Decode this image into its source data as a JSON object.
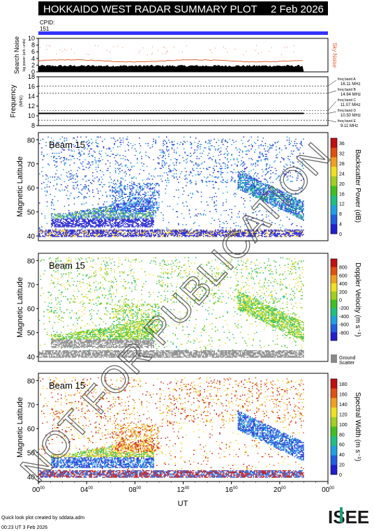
{
  "header": {
    "title": "HOKKAIDO WEST RADAR SUMMARY PLOT",
    "date": "2 Feb 2026",
    "cpid_label": "CPID:",
    "cpid_value": "151"
  },
  "footer": {
    "credit": "Quick look plot created by sddata.adm",
    "timestamp": "00:23 UT  3 Feb 2026",
    "logo_text": "ISEE",
    "watermark": "NOT FOR PUBLICATION"
  },
  "colors": {
    "cpid_bar": "#3333ff",
    "noise_line": "#e06030",
    "ground_scatter": "#888888",
    "text": "#000000"
  },
  "chart_data": [
    {
      "type": "area",
      "name": "noise-panel",
      "ylabel": "Search Noise",
      "ylabel_sub": "log power (arb. units)",
      "right_label": "Sky Noise",
      "yticks": [
        0,
        2,
        4,
        6,
        8,
        10
      ],
      "ylim": [
        0,
        10
      ],
      "x_range_hours": [
        0,
        22
      ],
      "search_noise_level": 1.5,
      "sky_noise_level": 3.2
    },
    {
      "type": "line",
      "name": "frequency-panel",
      "ylabel": "Frequency",
      "ylabel_sub": "(MHz)",
      "yticks": [
        8,
        10,
        12,
        14,
        16,
        18
      ],
      "ylim": [
        8,
        18
      ],
      "bands": [
        {
          "label": "freq band A",
          "value": "16.11 MHz",
          "mhz": 16.11
        },
        {
          "label": "freq band B",
          "value": "14.64 MHz",
          "mhz": 14.64
        },
        {
          "label": "freq band C",
          "value": "11.07 MHz",
          "mhz": 11.07
        },
        {
          "label": "freq band D",
          "value": "10.50 MHz",
          "mhz": 10.5
        },
        {
          "label": "freq band E",
          "value": "9.11 MHz",
          "mhz": 9.11
        }
      ],
      "active_frequency_mhz": 10.5
    },
    {
      "type": "heatmap",
      "name": "power-panel",
      "beam": "Beam 15",
      "ylabel": "Magnetic Latitude",
      "ylim": [
        38,
        83
      ],
      "yticks": [
        40,
        50,
        60,
        70,
        80
      ],
      "colorbar_label": "Backscatter Power (dB)",
      "colorbar_ticks": [
        0,
        4,
        8,
        12,
        16,
        20,
        24,
        28,
        32,
        36
      ],
      "colorbar_range": [
        0,
        38
      ],
      "palette": [
        "#2020d0",
        "#2060e0",
        "#20a0e0",
        "#20c080",
        "#40c020",
        "#a0d020",
        "#f0e020",
        "#f0a020",
        "#e05010",
        "#c01010"
      ],
      "features": [
        {
          "t0": 0.1,
          "t1": 1.5,
          "lat0": 40,
          "lat1": 42,
          "value": 10
        },
        {
          "t0": 2.0,
          "t1": 8.5,
          "lat0": 44,
          "lat1": 50,
          "value": 8
        },
        {
          "t0": 6.0,
          "t1": 9.5,
          "lat0": 50,
          "lat1": 60,
          "value": 6
        },
        {
          "t0": 17.0,
          "t1": 21.0,
          "lat0": 50,
          "lat1": 62,
          "value": 6
        }
      ]
    },
    {
      "type": "heatmap",
      "name": "velocity-panel",
      "beam": "Beam 15",
      "ylabel": "Magnetic Latitude",
      "ylim": [
        38,
        83
      ],
      "yticks": [
        40,
        50,
        60,
        70,
        80
      ],
      "colorbar_label": "Doppler Velocity (m s⁻¹)",
      "colorbar_ticks": [
        800,
        600,
        400,
        200,
        0,
        -200,
        -400,
        -600,
        -800
      ],
      "colorbar_range": [
        -1000,
        1000
      ],
      "ground_scatter_label": "Ground Scatter",
      "palette": [
        "#c01010",
        "#e05010",
        "#f0a020",
        "#f0e020",
        "#a0d020",
        "#40c020",
        "#20c080",
        "#20a0e0",
        "#2060e0",
        "#2020d0"
      ]
    },
    {
      "type": "heatmap",
      "name": "width-panel",
      "beam": "Beam 15",
      "ylabel": "Magnetic Latitude",
      "ylim": [
        38,
        83
      ],
      "yticks": [
        40,
        50,
        60,
        70,
        80
      ],
      "xlabel": "UT",
      "xticks": [
        "00",
        "04",
        "08",
        "12",
        "16",
        "20",
        "00"
      ],
      "xtick_sup": "00",
      "colorbar_label": "Spectral Width (m s⁻¹)",
      "colorbar_ticks": [
        0,
        20,
        40,
        60,
        80,
        100,
        120,
        140,
        160,
        180
      ],
      "colorbar_range": [
        0,
        190
      ],
      "palette": [
        "#2020d0",
        "#2060e0",
        "#20a0e0",
        "#20c080",
        "#40c020",
        "#a0d020",
        "#f0e020",
        "#f0a020",
        "#e05010",
        "#c01010"
      ]
    }
  ]
}
